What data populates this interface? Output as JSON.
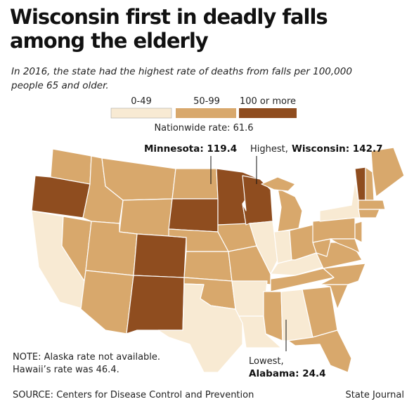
{
  "title": [
    "Wisconsin first in deadly falls",
    "among the elderly"
  ],
  "subtitle": [
    "In 2016, the state had the highest rate of deaths from falls per 100,000",
    "people 65 and older."
  ],
  "legend": [
    {
      "label": "0-49",
      "color": "#f8ead3"
    },
    {
      "label": "50-99",
      "color": "#d8a86c"
    },
    {
      "label": "100 or more",
      "color": "#8f4d1f"
    }
  ],
  "nationwide": "Nationwide rate: 61.6",
  "annotations": {
    "minnesota": "Minnesota: 119.4",
    "highest": "Highest,",
    "wisconsin": "Wisconsin: 142.7",
    "lowest": "Lowest,",
    "alabama": "Alabama: 24.4"
  },
  "note": [
    "NOTE: Alaska rate not available.",
    "Hawaii’s rate was 46.4."
  ],
  "source": "SOURCE: Centers for Disease Control and Prevention",
  "credit": "State Journal"
}
